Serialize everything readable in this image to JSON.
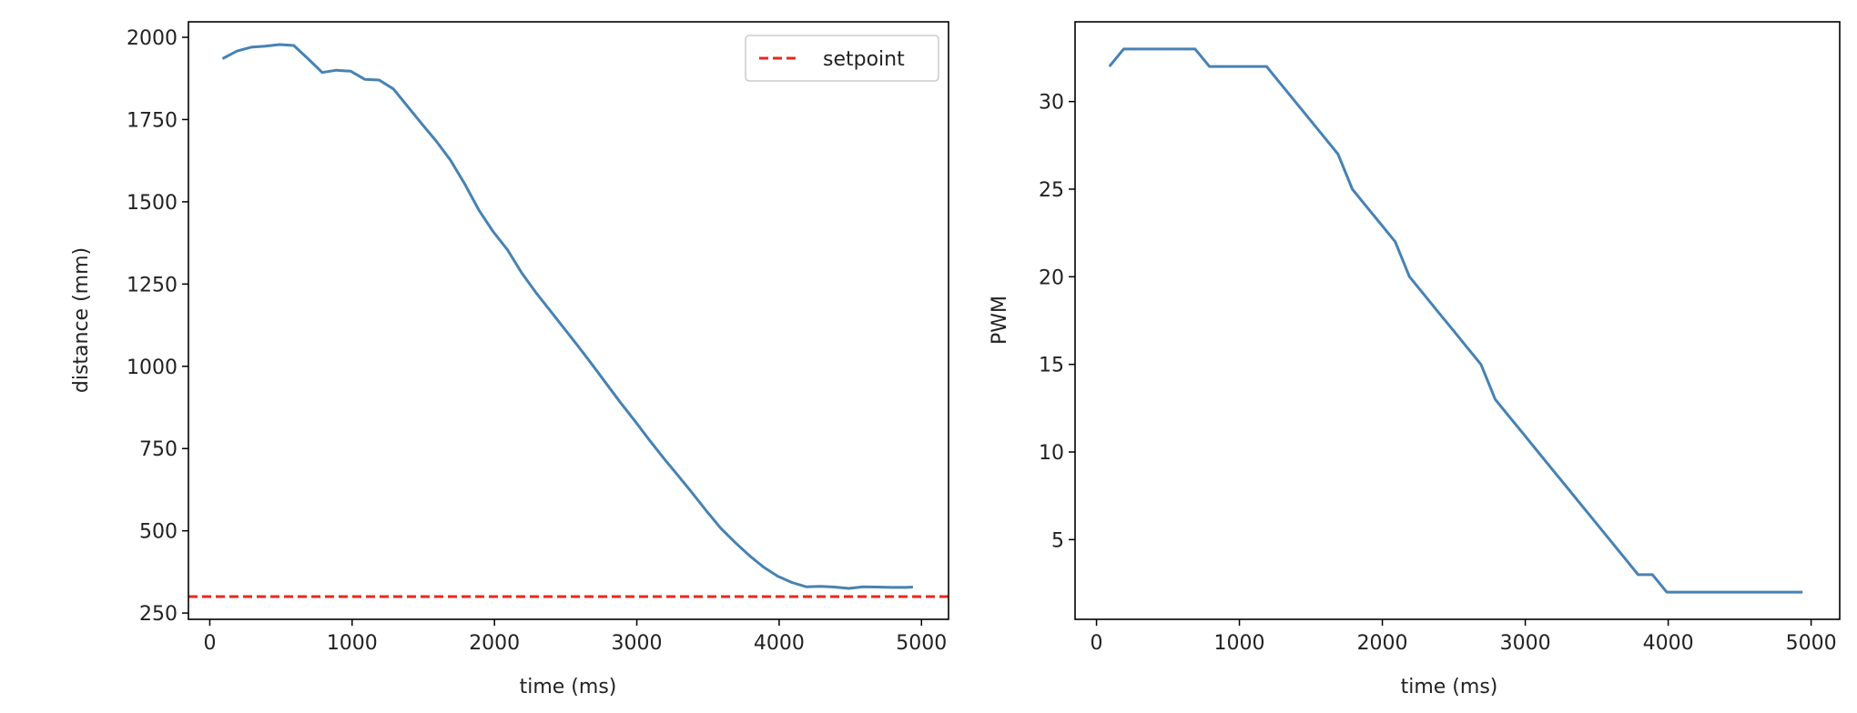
{
  "colors": {
    "line": "#4682b4",
    "setpoint": "#e8291c",
    "axis": "#000000"
  },
  "chart_data": [
    {
      "type": "line",
      "title": "",
      "xlabel": "time (ms)",
      "ylabel": "distance (mm)",
      "xlim": [
        -150,
        5190
      ],
      "ylim": [
        231,
        2047
      ],
      "xticks": [
        0,
        1000,
        2000,
        3000,
        4000,
        5000
      ],
      "yticks": [
        250,
        500,
        750,
        1000,
        1250,
        1500,
        1750,
        2000
      ],
      "grid": false,
      "legend": {
        "placement": "top-right",
        "entries": [
          "setpoint"
        ]
      },
      "hlines": [
        {
          "name": "setpoint",
          "y": 300,
          "style": "dashed"
        }
      ],
      "series": [
        {
          "name": "distance",
          "x": [
            90,
            190,
            290,
            390,
            490,
            590,
            690,
            790,
            890,
            990,
            1090,
            1190,
            1290,
            1390,
            1490,
            1590,
            1690,
            1790,
            1890,
            1990,
            2090,
            2190,
            2290,
            2390,
            2490,
            2590,
            2690,
            2790,
            2890,
            2990,
            3090,
            3190,
            3290,
            3390,
            3490,
            3590,
            3690,
            3790,
            3890,
            3990,
            4090,
            4190,
            4290,
            4390,
            4490,
            4590,
            4690,
            4790,
            4890,
            4940
          ],
          "y": [
            1935,
            1958,
            1970,
            1973,
            1978,
            1975,
            1935,
            1893,
            1900,
            1897,
            1872,
            1870,
            1843,
            1790,
            1737,
            1685,
            1627,
            1555,
            1475,
            1410,
            1355,
            1285,
            1225,
            1170,
            1115,
            1060,
            1003,
            945,
            887,
            832,
            775,
            720,
            668,
            615,
            560,
            508,
            465,
            425,
            390,
            362,
            343,
            330,
            331,
            329,
            325,
            330,
            329,
            328,
            328,
            329
          ]
        }
      ]
    },
    {
      "type": "line",
      "title": "",
      "xlabel": "time (ms)",
      "ylabel": "PWM",
      "xlim": [
        -150,
        5200
      ],
      "ylim": [
        0.45,
        34.55
      ],
      "xticks": [
        0,
        1000,
        2000,
        3000,
        4000,
        5000
      ],
      "yticks": [
        5,
        10,
        15,
        20,
        25,
        30
      ],
      "grid": false,
      "series": [
        {
          "name": "PWM",
          "x": [
            90,
            190,
            690,
            790,
            1190,
            1290,
            1390,
            1490,
            1590,
            1690,
            1790,
            1890,
            1990,
            2090,
            2190,
            2290,
            2390,
            2490,
            2590,
            2690,
            2790,
            2890,
            2990,
            3090,
            3190,
            3290,
            3390,
            3490,
            3590,
            3690,
            3790,
            3890,
            3990,
            4940
          ],
          "y": [
            32,
            33,
            33,
            32,
            32,
            31,
            30,
            29,
            28,
            27,
            25,
            24,
            23,
            22,
            20,
            19,
            18,
            17,
            16,
            15,
            13,
            12,
            11,
            10,
            9,
            8,
            7,
            6,
            5,
            4,
            3,
            3,
            2,
            2
          ]
        }
      ]
    }
  ]
}
